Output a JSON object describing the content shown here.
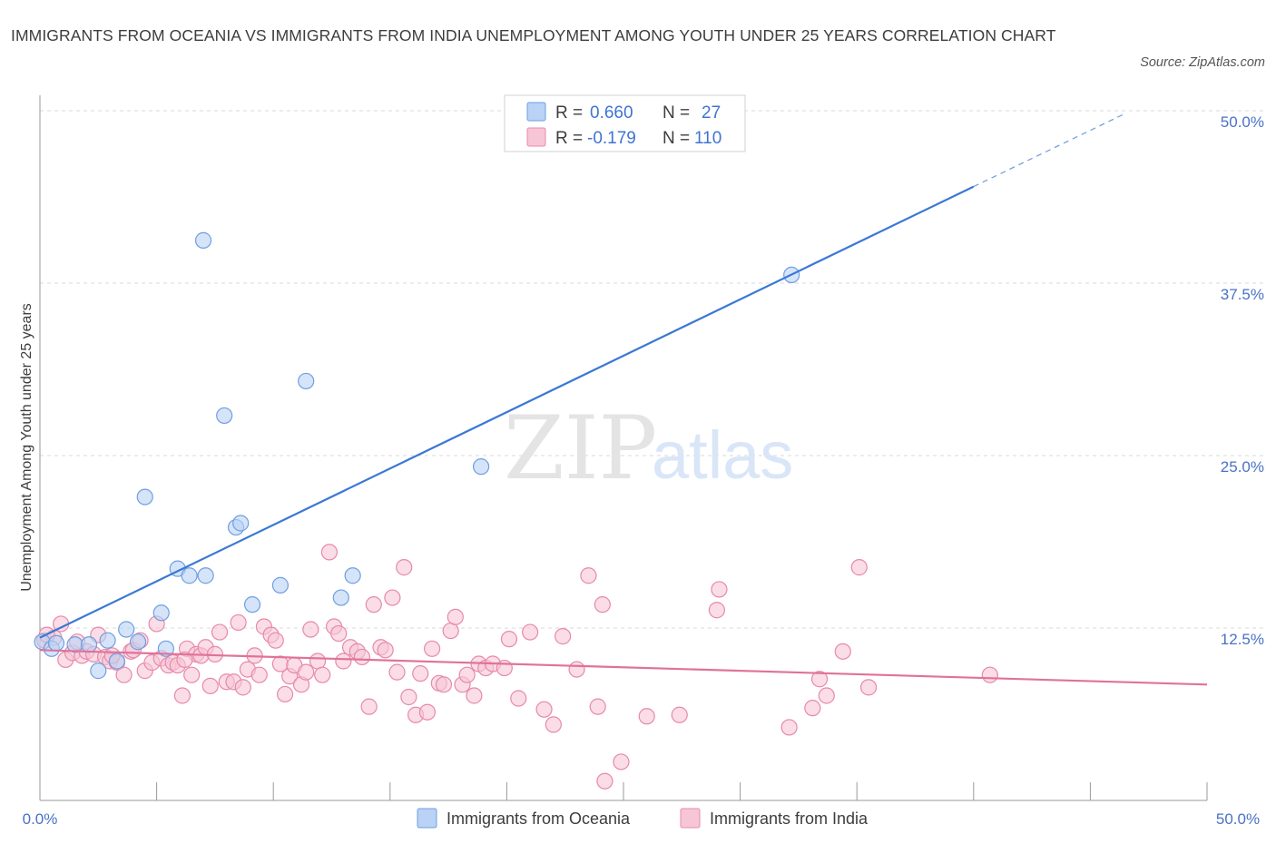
{
  "title": "IMMIGRANTS FROM OCEANIA VS IMMIGRANTS FROM INDIA UNEMPLOYMENT AMONG YOUTH UNDER 25 YEARS CORRELATION CHART",
  "source": "Source: ZipAtlas.com",
  "watermark": {
    "zip": "ZIP",
    "atlas": "atlas"
  },
  "legend": {
    "r_label": "R =",
    "n_label": "N =",
    "rows": [
      {
        "r": "0.660",
        "n": "27"
      },
      {
        "r": "-0.179",
        "n": "110"
      }
    ]
  },
  "colors": {
    "oceania_fill": "#b9d2f5",
    "oceania_stroke": "#6f9fe0",
    "oceania_line": "#3a78d4",
    "india_fill": "#f7c6d6",
    "india_stroke": "#e889a9",
    "india_line": "#e0729a",
    "tick_label": "#4a72c6",
    "grid": "#d8d8d8"
  },
  "chart_data": {
    "type": "scatter",
    "title": "IMMIGRANTS FROM OCEANIA VS IMMIGRANTS FROM INDIA UNEMPLOYMENT AMONG YOUTH UNDER 25 YEARS CORRELATION CHART",
    "xlabel": "",
    "ylabel": "Unemployment Among Youth under 25 years",
    "xlim": [
      0,
      50
    ],
    "ylim": [
      0,
      50
    ],
    "x_tick_labels": [
      "0.0%",
      "50.0%"
    ],
    "y_tick_labels": [
      "12.5%",
      "25.0%",
      "37.5%",
      "50.0%"
    ],
    "y_ticks": [
      12.5,
      25,
      37.5,
      50
    ],
    "legend_position": "top-center",
    "series": [
      {
        "name": "Immigrants from Oceania",
        "R": 0.66,
        "N": 27,
        "trend": {
          "x0": 0,
          "y0": 11.8,
          "x1": 40,
          "y1": 44.5,
          "dash_to_x": 46.5,
          "dash_to_y": 49.8
        },
        "points": [
          [
            0.1,
            11.5
          ],
          [
            0.5,
            11.0
          ],
          [
            0.7,
            11.4
          ],
          [
            1.5,
            11.3
          ],
          [
            2.1,
            11.3
          ],
          [
            2.5,
            9.4
          ],
          [
            2.9,
            11.6
          ],
          [
            3.3,
            10.1
          ],
          [
            3.7,
            12.4
          ],
          [
            4.2,
            11.5
          ],
          [
            4.5,
            22.0
          ],
          [
            5.2,
            13.6
          ],
          [
            5.4,
            11.0
          ],
          [
            5.9,
            16.8
          ],
          [
            6.4,
            16.3
          ],
          [
            7.0,
            40.6
          ],
          [
            7.1,
            16.3
          ],
          [
            7.9,
            27.9
          ],
          [
            8.4,
            19.8
          ],
          [
            8.6,
            20.1
          ],
          [
            9.1,
            14.2
          ],
          [
            10.3,
            15.6
          ],
          [
            11.4,
            30.4
          ],
          [
            12.9,
            14.7
          ],
          [
            13.4,
            16.3
          ],
          [
            18.9,
            24.2
          ],
          [
            32.2,
            38.1
          ]
        ]
      },
      {
        "name": "Immigrants from India",
        "R": -0.179,
        "N": 110,
        "trend": {
          "x0": 0,
          "y0": 10.9,
          "x1": 50,
          "y1": 8.4
        },
        "points": [
          [
            0.2,
            11.6
          ],
          [
            0.6,
            11.8
          ],
          [
            0.9,
            12.8
          ],
          [
            1.1,
            10.2
          ],
          [
            1.4,
            10.7
          ],
          [
            1.8,
            10.5
          ],
          [
            2.0,
            10.8
          ],
          [
            2.3,
            10.6
          ],
          [
            2.5,
            12.0
          ],
          [
            2.8,
            10.4
          ],
          [
            3.0,
            10.1
          ],
          [
            3.3,
            10.0
          ],
          [
            3.6,
            9.1
          ],
          [
            3.9,
            10.8
          ],
          [
            4.0,
            10.9
          ],
          [
            4.3,
            11.6
          ],
          [
            4.5,
            9.4
          ],
          [
            4.8,
            10.0
          ],
          [
            5.0,
            12.8
          ],
          [
            5.2,
            10.3
          ],
          [
            5.5,
            9.8
          ],
          [
            5.7,
            10.0
          ],
          [
            5.9,
            9.8
          ],
          [
            6.1,
            7.6
          ],
          [
            6.3,
            11.0
          ],
          [
            6.5,
            9.1
          ],
          [
            6.7,
            10.6
          ],
          [
            6.9,
            10.5
          ],
          [
            7.1,
            11.1
          ],
          [
            7.3,
            8.3
          ],
          [
            7.5,
            10.6
          ],
          [
            7.7,
            12.2
          ],
          [
            8.0,
            8.6
          ],
          [
            8.3,
            8.6
          ],
          [
            8.5,
            12.9
          ],
          [
            8.7,
            8.2
          ],
          [
            8.9,
            9.5
          ],
          [
            9.2,
            10.5
          ],
          [
            9.4,
            9.1
          ],
          [
            9.6,
            12.6
          ],
          [
            9.9,
            12.0
          ],
          [
            10.1,
            11.6
          ],
          [
            10.3,
            9.9
          ],
          [
            10.5,
            7.7
          ],
          [
            10.7,
            9.0
          ],
          [
            10.9,
            9.8
          ],
          [
            11.2,
            8.4
          ],
          [
            11.4,
            9.3
          ],
          [
            11.6,
            12.4
          ],
          [
            11.9,
            10.1
          ],
          [
            12.1,
            9.1
          ],
          [
            12.4,
            18.0
          ],
          [
            12.6,
            12.6
          ],
          [
            12.8,
            12.1
          ],
          [
            13.0,
            10.1
          ],
          [
            13.3,
            11.1
          ],
          [
            13.6,
            10.8
          ],
          [
            13.8,
            10.4
          ],
          [
            14.1,
            6.8
          ],
          [
            14.3,
            14.2
          ],
          [
            14.6,
            11.1
          ],
          [
            14.8,
            10.9
          ],
          [
            15.1,
            14.7
          ],
          [
            15.3,
            9.3
          ],
          [
            15.6,
            16.9
          ],
          [
            15.8,
            7.5
          ],
          [
            16.1,
            6.2
          ],
          [
            16.3,
            9.2
          ],
          [
            16.6,
            6.4
          ],
          [
            16.8,
            11.0
          ],
          [
            17.1,
            8.5
          ],
          [
            17.3,
            8.4
          ],
          [
            17.6,
            12.3
          ],
          [
            17.8,
            13.3
          ],
          [
            18.1,
            8.4
          ],
          [
            18.3,
            9.1
          ],
          [
            18.6,
            7.6
          ],
          [
            18.8,
            9.9
          ],
          [
            19.1,
            9.6
          ],
          [
            19.4,
            9.9
          ],
          [
            19.9,
            9.6
          ],
          [
            20.1,
            11.7
          ],
          [
            20.5,
            7.4
          ],
          [
            21.0,
            12.2
          ],
          [
            21.6,
            6.6
          ],
          [
            22.0,
            5.5
          ],
          [
            22.4,
            11.9
          ],
          [
            23.0,
            9.5
          ],
          [
            23.5,
            16.3
          ],
          [
            24.1,
            14.2
          ],
          [
            23.9,
            6.8
          ],
          [
            24.2,
            1.4
          ],
          [
            24.9,
            2.8
          ],
          [
            26.0,
            6.1
          ],
          [
            27.4,
            6.2
          ],
          [
            29.0,
            13.8
          ],
          [
            29.1,
            15.3
          ],
          [
            32.1,
            5.3
          ],
          [
            33.1,
            6.7
          ],
          [
            33.4,
            8.8
          ],
          [
            33.7,
            7.6
          ],
          [
            34.4,
            10.8
          ],
          [
            35.1,
            16.9
          ],
          [
            35.5,
            8.2
          ],
          [
            40.7,
            9.1
          ],
          [
            0.3,
            12.0
          ],
          [
            1.6,
            11.5
          ],
          [
            3.1,
            10.5
          ],
          [
            6.2,
            10.2
          ]
        ]
      }
    ]
  }
}
